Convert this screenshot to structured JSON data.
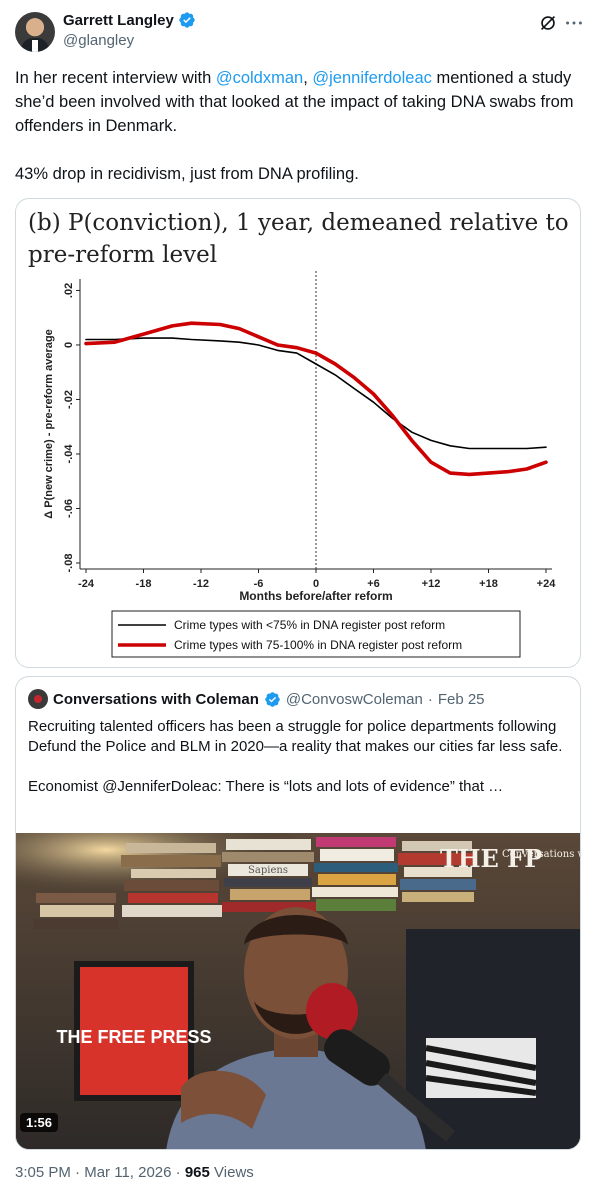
{
  "author": {
    "display_name": "Garrett Langley",
    "handle": "@glangley",
    "verified": true,
    "avatar_icon": "profile-photo"
  },
  "tweet": {
    "text_segments": [
      "In her recent interview with ",
      "@coldxman",
      ", ",
      "@jenniferdoleac",
      " mentioned a study she’d been involved with that looked at the impact of taking DNA swabs from offenders in Denmark."
    ],
    "second_paragraph": "43% drop in recidivism, just from DNA profiling."
  },
  "chart_data": {
    "type": "line",
    "title": "(b) P(conviction), 1 year, demeaned relative to pre-reform level",
    "xlabel": "Months before/after reform",
    "ylabel": "Δ P(new crime) - pre-reform average",
    "x_ticks": [
      "-24",
      "-18",
      "-12",
      "-6",
      "0",
      "+6",
      "+12",
      "+18",
      "+24"
    ],
    "y_ticks": [
      "-.08",
      "-.06",
      "-.04",
      "-.02",
      "0",
      ".02"
    ],
    "xlim": [
      -24,
      24
    ],
    "ylim": [
      -0.08,
      0.022
    ],
    "reference_line_x": 0,
    "x": [
      -24,
      -21,
      -18,
      -15,
      -13,
      -10,
      -8,
      -6,
      -4,
      -2,
      0,
      2,
      4,
      6,
      8,
      10,
      12,
      14,
      16,
      18,
      20,
      22,
      24
    ],
    "series": [
      {
        "name": "Crime types with <75% in DNA register post reform",
        "color": "#000000",
        "values": [
          0.002,
          0.002,
          0.0025,
          0.0025,
          0.002,
          0.0015,
          0.001,
          0.0,
          -0.002,
          -0.003,
          -0.007,
          -0.011,
          -0.016,
          -0.021,
          -0.027,
          -0.032,
          -0.035,
          -0.037,
          -0.038,
          -0.038,
          -0.038,
          -0.038,
          -0.0375
        ]
      },
      {
        "name": "Crime types with 75-100% in DNA register post reform",
        "color": "#cc0000",
        "values": [
          0.0005,
          0.001,
          0.004,
          0.007,
          0.008,
          0.0075,
          0.006,
          0.003,
          0.0,
          -0.001,
          -0.003,
          -0.007,
          -0.012,
          -0.018,
          -0.026,
          -0.035,
          -0.043,
          -0.047,
          -0.0475,
          -0.047,
          -0.0465,
          -0.0455,
          -0.043
        ]
      }
    ],
    "legend": "bottom",
    "grid": false
  },
  "quote": {
    "display_name": "Conversations with Coleman",
    "handle": "@ConvoswColeman",
    "separator": "·",
    "date": "Feb 25",
    "text": "Recruiting talented officers has been a struggle for police departments following Defund the Police and BLM in 2020—a reality that makes our cities far less safe.",
    "text2": "Economist @JenniferDoleac: There is “lots and lots of evidence” that …",
    "video_duration": "1:56",
    "video_sign_text": "THE FREE PRESS",
    "video_overlay_text": "Conversations with Coleman",
    "video_overlay_logo": "THE FP",
    "video_book_title": "Sapiens"
  },
  "footer": {
    "time": "3:05 PM",
    "separator": "·",
    "date": "Mar 11, 2026",
    "separator2": "·",
    "views_count": "965",
    "views_label": "Views"
  }
}
